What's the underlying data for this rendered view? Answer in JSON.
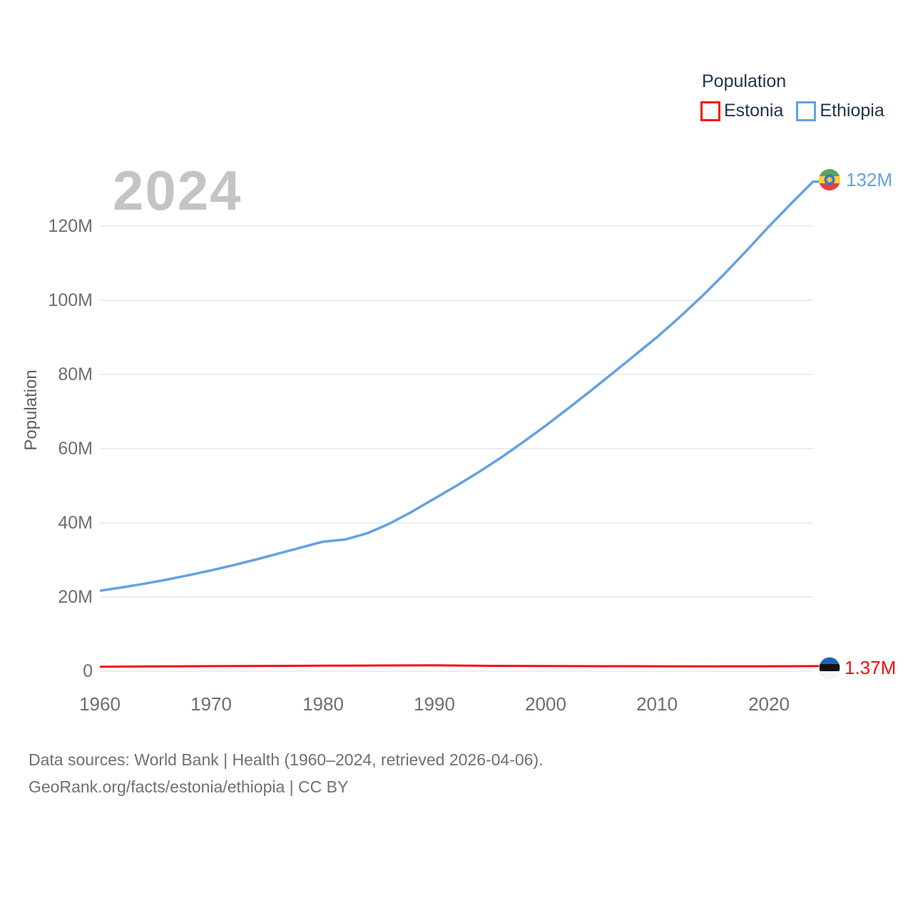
{
  "legend": {
    "title": "Population",
    "items": [
      {
        "label": "Estonia",
        "color": "#f50d0d"
      },
      {
        "label": "Ethiopia",
        "color": "#64a1e0"
      }
    ]
  },
  "chart_data": {
    "type": "line",
    "title": "2024",
    "ylabel": "Population",
    "xlabel": "",
    "xlim": [
      1960,
      2024
    ],
    "ylim": [
      0,
      135
    ],
    "grid": "horizontal",
    "legend_position": "top-right",
    "units": "millions of people",
    "x_tick_labels": [
      "1960",
      "1970",
      "1980",
      "1990",
      "2000",
      "2010",
      "2020"
    ],
    "y_tick_labels": [
      "120M",
      "100M",
      "80M",
      "60M",
      "40M",
      "20M",
      "0"
    ],
    "y_ticks_m": [
      120,
      100,
      80,
      60,
      40,
      20,
      0
    ],
    "series": [
      {
        "name": "Estonia",
        "color": "#f50d0d",
        "end_label": "1.37M",
        "flag": "estonia",
        "x": [
          1960,
          1965,
          1970,
          1975,
          1980,
          1985,
          1990,
          1995,
          2000,
          2005,
          2010,
          2015,
          2020,
          2024
        ],
        "values": [
          1.21,
          1.29,
          1.36,
          1.42,
          1.48,
          1.53,
          1.57,
          1.44,
          1.4,
          1.35,
          1.33,
          1.31,
          1.33,
          1.37
        ]
      },
      {
        "name": "Ethiopia",
        "color": "#64a1e0",
        "end_label": "132M",
        "flag": "ethiopia",
        "x": [
          1960,
          1962,
          1964,
          1966,
          1968,
          1970,
          1972,
          1974,
          1976,
          1978,
          1980,
          1982,
          1984,
          1986,
          1988,
          1990,
          1992,
          1994,
          1996,
          1998,
          2000,
          2002,
          2004,
          2006,
          2008,
          2010,
          2012,
          2014,
          2016,
          2018,
          2020,
          2022,
          2024
        ],
        "values": [
          21.7,
          22.6,
          23.6,
          24.7,
          25.9,
          27.2,
          28.6,
          30.1,
          31.7,
          33.3,
          34.9,
          35.5,
          37.2,
          39.8,
          43.0,
          46.5,
          50.0,
          53.7,
          57.6,
          61.8,
          66.2,
          70.8,
          75.5,
          80.3,
          85.2,
          90.1,
          95.4,
          101.0,
          107.0,
          113.3,
          119.8,
          126.0,
          132.0
        ]
      }
    ]
  },
  "footer": {
    "line1": "Data sources: World Bank | Health (1960–2024, retrieved 2026-04-06).",
    "line2": "GeoRank.org/facts/estonia/ethiopia | CC BY"
  },
  "colors": {
    "estonia_line": "#f50d0d",
    "ethiopia_line": "#64a1e0",
    "legend_text": "#24344d",
    "tick_text": "#6e6e6e",
    "watermark": "#c4c4c4",
    "gridline": "#e7e7e7",
    "footer_text": "#707070"
  }
}
